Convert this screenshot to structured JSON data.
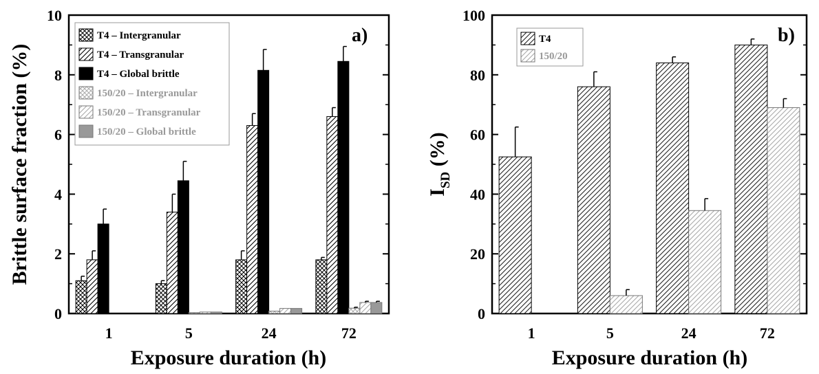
{
  "chart_data": [
    {
      "type": "bar",
      "panel_label": "a)",
      "xlabel": "Exposure duration (h)",
      "ylabel": "Brittle surface fraction (%)",
      "ylim": [
        0,
        10
      ],
      "yticks": [
        "0",
        "2",
        "4",
        "6",
        "8",
        "10"
      ],
      "categories": [
        "1",
        "5",
        "24",
        "72"
      ],
      "legend_position": "top-left",
      "series": [
        {
          "name": "T4 – Intergranular",
          "pattern": "crosshatch",
          "color": "#000000",
          "values": [
            1.1,
            1.0,
            1.8,
            1.8
          ],
          "errors": [
            0.15,
            0.1,
            0.3,
            0.08
          ]
        },
        {
          "name": "T4 – Transgranular",
          "pattern": "diagonal",
          "color": "#000000",
          "values": [
            1.8,
            3.4,
            6.3,
            6.6
          ],
          "errors": [
            0.3,
            0.6,
            0.4,
            0.3
          ]
        },
        {
          "name": "T4 – Global brittle",
          "pattern": "solid",
          "color": "#000000",
          "values": [
            3.0,
            4.45,
            8.15,
            8.45
          ],
          "errors": [
            0.5,
            0.65,
            0.7,
            0.5
          ]
        },
        {
          "name": "150/20 – Intergranular",
          "pattern": "crosshatch",
          "color": "#aaaaaa",
          "values": [
            0,
            0.03,
            0.08,
            0.18
          ],
          "errors": [
            0,
            0,
            0,
            0.03
          ]
        },
        {
          "name": "150/20 – Transgranular",
          "pattern": "diagonal",
          "color": "#aaaaaa",
          "values": [
            0,
            0.05,
            0.17,
            0.37
          ],
          "errors": [
            0,
            0,
            0,
            0.04
          ]
        },
        {
          "name": "150/20 – Global brittle",
          "pattern": "solid",
          "color": "#999999",
          "values": [
            0,
            0.05,
            0.17,
            0.37
          ],
          "errors": [
            0,
            0,
            0,
            0.04
          ]
        }
      ]
    },
    {
      "type": "bar",
      "panel_label": "b)",
      "xlabel": "Exposure duration (h)",
      "ylabel_main": "I",
      "ylabel_sub": "SD",
      "ylabel_unit": " (%)",
      "ylim": [
        0,
        100
      ],
      "yticks": [
        "0",
        "20",
        "40",
        "60",
        "80",
        "100"
      ],
      "categories": [
        "1",
        "5",
        "24",
        "72"
      ],
      "legend_position": "top-left",
      "series": [
        {
          "name": "T4",
          "pattern": "diagonal",
          "color": "#222222",
          "values": [
            52.5,
            76,
            84,
            90
          ],
          "errors": [
            10,
            5,
            2,
            2
          ]
        },
        {
          "name": "150/20",
          "pattern": "diagonal",
          "color": "#aaaaaa",
          "values": [
            0,
            6,
            34.5,
            69
          ],
          "errors": [
            0,
            2,
            4,
            3
          ]
        }
      ]
    }
  ]
}
